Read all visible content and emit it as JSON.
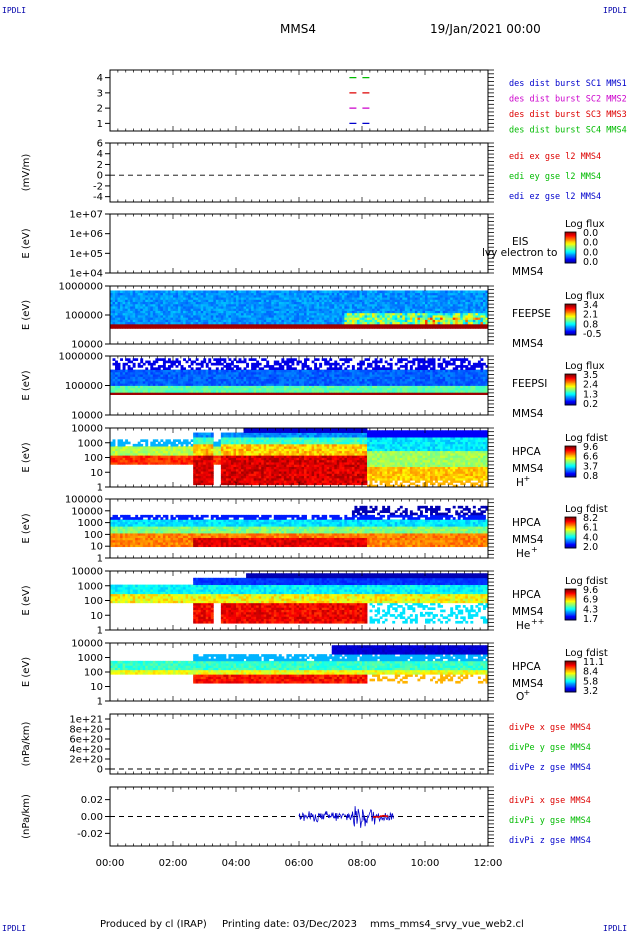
{
  "corners": [
    "IPDLI",
    "IPDLI",
    "IPDLI",
    "IPDLI"
  ],
  "header": {
    "spacecraft": "MMS4",
    "datetime": "19/Jan/2021 00:00"
  },
  "footer": {
    "producer": "Produced by cl (IRAP)",
    "printing": "Printing date: 03/Dec/2023",
    "file": "mms_mms4_srvy_vue_web2.cl"
  },
  "colors": {
    "mms1": "#0000cc",
    "mms2": "#cc00cc",
    "mms3": "#dd0000",
    "mms4": "#00bb00",
    "x": "#dd0000",
    "y": "#00bb00",
    "z": "#0000cc"
  },
  "chart_data": [
    {
      "type": "line",
      "panel": "burst-availability",
      "ylabel": "",
      "ylim": [
        0.5,
        4.5
      ],
      "ticks": [
        "1",
        "2",
        "3",
        "4"
      ],
      "series": [
        {
          "name": "des dist burst SC1 MMS1",
          "y": 1,
          "x": [
            7.6,
            8.4
          ]
        },
        {
          "name": "des dist burst SC2 MMS2",
          "y": 2,
          "x": [
            7.6,
            8.4
          ]
        },
        {
          "name": "des dist burst SC3 MMS3",
          "y": 3,
          "x": [
            7.6,
            8.4
          ]
        },
        {
          "name": "des dist burst SC4 MMS4",
          "y": 4,
          "x": [
            7.6,
            8.4
          ]
        }
      ]
    },
    {
      "type": "line",
      "panel": "edi-efield",
      "ylabel": "(mV/m)",
      "ylim": [
        -5,
        6
      ],
      "ticks": [
        "-4",
        "-2",
        "0",
        "2",
        "4",
        "6"
      ],
      "series": [
        {
          "name": "edi ex gse l2 MMS4"
        },
        {
          "name": "edi ey gse l2 MMS4"
        },
        {
          "name": "edi ez gse l2 MMS4"
        }
      ]
    },
    {
      "type": "heatmap",
      "panel": "eis",
      "ylabel": "E (eV)",
      "ylim": [
        10000,
        10000000
      ],
      "ticks": [
        "1e+04",
        "1e+05",
        "1e+06",
        "1e+07"
      ],
      "labels": [
        "EIS",
        "MMS4"
      ],
      "overlay": "lvy electron to",
      "colorbar": {
        "title": "Log flux",
        "ticks": [
          "0.0",
          "0.0",
          "0.0",
          "0.0"
        ]
      }
    },
    {
      "type": "heatmap",
      "panel": "feeps-electron",
      "ylabel": "E (eV)",
      "ylim": [
        10000,
        1000000
      ],
      "ticks": [
        "10000",
        "100000",
        "1000000"
      ],
      "labels": [
        "FEEPSE",
        "MMS4"
      ],
      "colorbar": {
        "title": "Log flux",
        "ticks": [
          "3.4",
          "2.1",
          "0.8",
          "-0.5"
        ]
      }
    },
    {
      "type": "heatmap",
      "panel": "feeps-ion",
      "ylabel": "E (eV)",
      "ylim": [
        10000,
        1000000
      ],
      "ticks": [
        "10000",
        "100000",
        "1000000"
      ],
      "labels": [
        "FEEPSI",
        "MMS4"
      ],
      "colorbar": {
        "title": "Log flux",
        "ticks": [
          "3.5",
          "2.4",
          "1.3",
          "0.2"
        ]
      }
    },
    {
      "type": "heatmap",
      "panel": "hpca-h",
      "ylabel": "E (eV)",
      "ylim": [
        1,
        10000
      ],
      "ticks": [
        "1",
        "10",
        "100",
        "1000",
        "10000"
      ],
      "labels": [
        "HPCA",
        "MMS4",
        "H"
      ],
      "species_charge": "+",
      "colorbar": {
        "title": "Log fdist",
        "ticks": [
          "9.6",
          "6.6",
          "3.7",
          "0.8"
        ]
      }
    },
    {
      "type": "heatmap",
      "panel": "hpca-he",
      "ylabel": "E (eV)",
      "ylim": [
        1,
        100000
      ],
      "ticks": [
        "1",
        "10",
        "100",
        "1000",
        "10000",
        "100000"
      ],
      "labels": [
        "HPCA",
        "MMS4",
        "He"
      ],
      "species_charge": "+",
      "colorbar": {
        "title": "Log fdist",
        "ticks": [
          "8.2",
          "6.1",
          "4.0",
          "2.0"
        ]
      }
    },
    {
      "type": "heatmap",
      "panel": "hpca-he2",
      "ylabel": "E (eV)",
      "ylim": [
        1,
        10000
      ],
      "ticks": [
        "1",
        "10",
        "100",
        "1000",
        "10000"
      ],
      "labels": [
        "HPCA",
        "MMS4",
        "He"
      ],
      "species_charge": "++",
      "colorbar": {
        "title": "Log fdist",
        "ticks": [
          "9.6",
          "6.9",
          "4.3",
          "1.7"
        ]
      }
    },
    {
      "type": "heatmap",
      "panel": "hpca-o",
      "ylabel": "E (eV)",
      "ylim": [
        1,
        10000
      ],
      "ticks": [
        "1",
        "10",
        "100",
        "1000",
        "10000"
      ],
      "labels": [
        "HPCA",
        "MMS4",
        "O"
      ],
      "species_charge": "+",
      "colorbar": {
        "title": "Log fdist",
        "ticks": [
          "11.1",
          "8.4",
          "5.8",
          "3.2"
        ]
      }
    },
    {
      "type": "line",
      "panel": "divpe",
      "ylabel": "(nPa/km)",
      "ylim": [
        -1e+20,
        1.1e+21
      ],
      "ticks": [
        "0",
        "2e+20",
        "4e+20",
        "6e+20",
        "8e+20",
        "1e+21"
      ],
      "series": [
        {
          "name": "divPe x gse MMS4"
        },
        {
          "name": "divPe y gse MMS4"
        },
        {
          "name": "divPe z gse MMS4"
        }
      ]
    },
    {
      "type": "line",
      "panel": "divpi",
      "ylabel": "(nPa/km)",
      "ylim": [
        -0.035,
        0.035
      ],
      "ticks": [
        "-0.02",
        "0.00",
        "0.02"
      ],
      "series": [
        {
          "name": "divPi x gse MMS4"
        },
        {
          "name": "divPi y gse MMS4"
        },
        {
          "name": "divPi z gse MMS4"
        }
      ]
    }
  ],
  "time_axis": {
    "xlim": [
      0,
      12
    ],
    "labels": [
      "00:00",
      "02:00",
      "04:00",
      "06:00",
      "08:00",
      "10:00",
      "12:00"
    ]
  }
}
